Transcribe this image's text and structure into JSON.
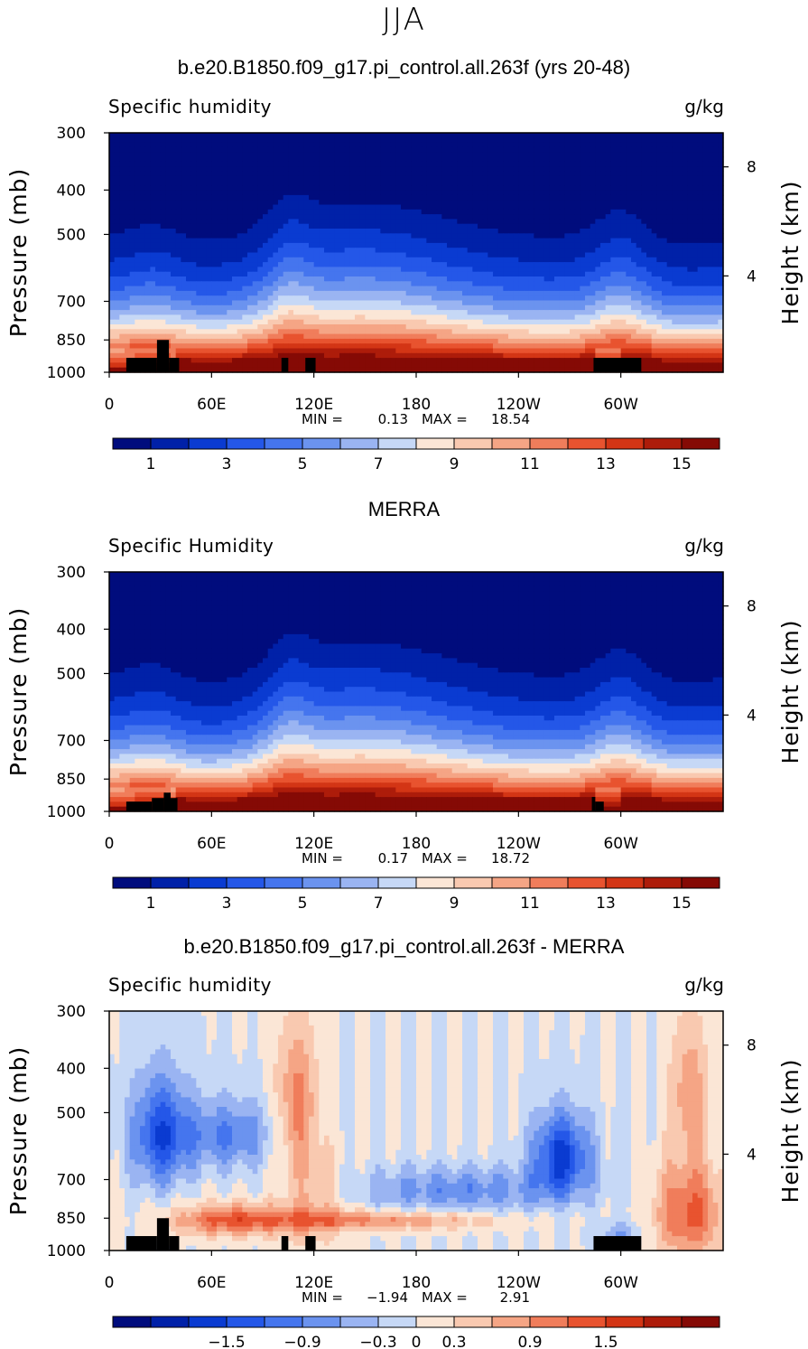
{
  "page_title": "JJA",
  "chart_data": [
    {
      "type": "heatmap",
      "title": "b.e20.B1850.f09_g17.pi_control.all.263f (yrs 20-48)",
      "left_label": "Specific humidity",
      "right_label": "g/kg",
      "ylabel": "Pressure (mb)",
      "y2label": "Height (km)",
      "x_ticks": [
        "0",
        "60E",
        "120E",
        "180",
        "120W",
        "60W"
      ],
      "x_tick_degrees": [
        0,
        60,
        120,
        180,
        240,
        300
      ],
      "xlim": [
        0,
        360
      ],
      "y_ticks": [
        "300",
        "400",
        "500",
        "700",
        "850",
        "1000"
      ],
      "y_tick_values": [
        300,
        400,
        500,
        700,
        850,
        1000
      ],
      "ylim": [
        1000,
        300
      ],
      "y_scale": "log",
      "y2_ticks": [
        "8",
        "4"
      ],
      "y2_tick_pressures": [
        356,
        616
      ],
      "min_label": "MIN =",
      "min_value": "0.13",
      "max_label": "MAX =",
      "max_value": "18.54",
      "colorbar_levels": [
        0,
        1,
        2,
        3,
        4,
        5,
        6,
        7,
        8,
        9,
        10,
        11,
        12,
        13,
        14,
        15,
        16
      ],
      "colorbar_labels": [
        "1",
        "3",
        "5",
        "7",
        "9",
        "11",
        "13",
        "15"
      ],
      "colorbar_label_index": [
        1,
        3,
        5,
        7,
        9,
        11,
        13,
        15
      ],
      "colormap": [
        "#000c7d",
        "#0021a8",
        "#0a3bd1",
        "#2457e8",
        "#4575ee",
        "#6b93ef",
        "#9ab4f2",
        "#c6d8f6",
        "#fbe6d6",
        "#f9c9b0",
        "#f5a585",
        "#f07d5b",
        "#e8532f",
        "#d33515",
        "#ad1c0a",
        "#850a05"
      ],
      "land_mask_color": "#000000",
      "surface_field": "mean",
      "mask": "model"
    },
    {
      "type": "heatmap",
      "title": "MERRA",
      "left_label": "Specific Humidity",
      "right_label": "g/kg",
      "ylabel": "Pressure (mb)",
      "y2label": "Height (km)",
      "x_ticks": [
        "0",
        "60E",
        "120E",
        "180",
        "120W",
        "60W"
      ],
      "x_tick_degrees": [
        0,
        60,
        120,
        180,
        240,
        300
      ],
      "xlim": [
        0,
        360
      ],
      "y_ticks": [
        "300",
        "400",
        "500",
        "700",
        "850",
        "1000"
      ],
      "y_tick_values": [
        300,
        400,
        500,
        700,
        850,
        1000
      ],
      "ylim": [
        1000,
        300
      ],
      "y_scale": "log",
      "y2_ticks": [
        "8",
        "4"
      ],
      "y2_tick_pressures": [
        356,
        616
      ],
      "min_label": "MIN =",
      "min_value": "0.17",
      "max_label": "MAX =",
      "max_value": "18.72",
      "colorbar_levels": [
        0,
        1,
        2,
        3,
        4,
        5,
        6,
        7,
        8,
        9,
        10,
        11,
        12,
        13,
        14,
        15,
        16
      ],
      "colorbar_labels": [
        "1",
        "3",
        "5",
        "7",
        "9",
        "11",
        "13",
        "15"
      ],
      "colorbar_label_index": [
        1,
        3,
        5,
        7,
        9,
        11,
        13,
        15
      ],
      "colormap": [
        "#000c7d",
        "#0021a8",
        "#0a3bd1",
        "#2457e8",
        "#4575ee",
        "#6b93ef",
        "#9ab4f2",
        "#c6d8f6",
        "#fbe6d6",
        "#f9c9b0",
        "#f5a585",
        "#f07d5b",
        "#e8532f",
        "#d33515",
        "#ad1c0a",
        "#850a05"
      ],
      "land_mask_color": "#000000",
      "surface_field": "mean",
      "mask": "merra"
    },
    {
      "type": "heatmap",
      "title": "b.e20.B1850.f09_g17.pi_control.all.263f - MERRA",
      "left_label": "Specific humidity",
      "right_label": "g/kg",
      "ylabel": "Pressure (mb)",
      "y2label": "Height (km)",
      "x_ticks": [
        "0",
        "60E",
        "120E",
        "180",
        "120W",
        "60W"
      ],
      "x_tick_degrees": [
        0,
        60,
        120,
        180,
        240,
        300
      ],
      "xlim": [
        0,
        360
      ],
      "y_ticks": [
        "300",
        "400",
        "500",
        "700",
        "850",
        "1000"
      ],
      "y_tick_values": [
        300,
        400,
        500,
        700,
        850,
        1000
      ],
      "ylim": [
        1000,
        300
      ],
      "y_scale": "log",
      "y2_ticks": [
        "8",
        "4"
      ],
      "y2_tick_pressures": [
        356,
        616
      ],
      "min_label": "MIN =",
      "min_value": "−1.94",
      "max_label": "MAX =",
      "max_value": "2.91",
      "colorbar_levels": [
        -2.4,
        -2.1,
        -1.8,
        -1.5,
        -1.2,
        -0.9,
        -0.6,
        -0.3,
        0,
        0.3,
        0.6,
        0.9,
        1.2,
        1.5,
        1.8,
        2.1,
        2.4
      ],
      "colorbar_labels": [
        "−1.5",
        "−0.9",
        "−0.3",
        "0",
        "0.3",
        "0.9",
        "1.5"
      ],
      "colorbar_label_index": [
        3,
        5,
        7,
        8,
        9,
        11,
        13
      ],
      "colormap": [
        "#000c7d",
        "#0021a8",
        "#0a3bd1",
        "#2457e8",
        "#4575ee",
        "#6b93ef",
        "#9ab4f2",
        "#c6d8f6",
        "#fbe6d6",
        "#f9c9b0",
        "#f5a585",
        "#f07d5b",
        "#e8532f",
        "#d33515",
        "#ad1c0a",
        "#850a05"
      ],
      "land_mask_color": "#000000",
      "surface_field": "difference",
      "mask": "model"
    }
  ]
}
